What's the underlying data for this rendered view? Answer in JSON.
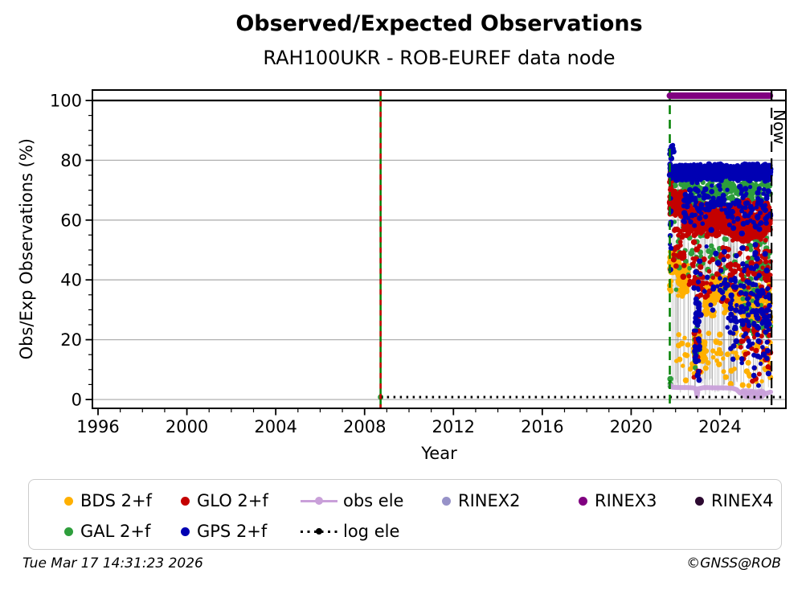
{
  "figure": {
    "title": "Observed/Expected Observations",
    "subtitle": "RAH100UKR - ROB-EUREF data node",
    "footer_left": "Tue Mar 17 14:31:23 2026",
    "footer_right": "©GNSS@ROB"
  },
  "chart_data": {
    "type": "scatter",
    "title": "Observed/Expected Observations",
    "subtitle": "RAH100UKR - ROB-EUREF data node",
    "xlabel": "Year",
    "ylabel": "Obs/Exp Observations (%)",
    "xlim": [
      1995.75,
      2026.97
    ],
    "ylim": [
      -3,
      103.5
    ],
    "xticks": [
      1996,
      2000,
      2004,
      2008,
      2012,
      2016,
      2020,
      2024
    ],
    "yticks": [
      0,
      20,
      40,
      60,
      80,
      100
    ],
    "grid": {
      "y_gridlines": [
        0,
        20,
        40,
        60,
        80
      ],
      "gridline_color": "#b0b0b0",
      "reference_line_y": 100,
      "reference_line_color": "#000000"
    },
    "annotations": {
      "now_label": "Now",
      "now_x": 2026.32,
      "first_data_vline_x": 2008.72,
      "campaign_start_vline_x": 2021.74
    },
    "lines": {
      "rinex3_bar": {
        "name": "RINEX3",
        "color": "#800080",
        "y": 101.6,
        "x": [
          2021.74,
          2026.25
        ],
        "width": 8
      },
      "log_ele": {
        "name": "log ele",
        "color": "#000000",
        "y": 0.8,
        "x": [
          2008.72,
          2026.9
        ],
        "style": "dotted"
      },
      "obs_ele": {
        "name": "obs ele",
        "color": "#C9A0D9",
        "points": [
          [
            2021.76,
            4.8
          ],
          [
            2021.85,
            4.1
          ],
          [
            2022.1,
            4.0
          ],
          [
            2022.5,
            4.0
          ],
          [
            2022.8,
            3.9
          ],
          [
            2022.92,
            3.6
          ],
          [
            2022.97,
            1.1
          ],
          [
            2023.02,
            3.6
          ],
          [
            2023.3,
            4.0
          ],
          [
            2023.8,
            3.9
          ],
          [
            2024.2,
            3.9
          ],
          [
            2024.55,
            3.8
          ],
          [
            2024.75,
            3.3
          ],
          [
            2024.9,
            2.2
          ],
          [
            2025.05,
            2.9
          ],
          [
            2025.25,
            1.9
          ],
          [
            2025.45,
            2.7
          ],
          [
            2025.65,
            1.6
          ],
          [
            2025.85,
            2.6
          ],
          [
            2026.05,
            2.0
          ],
          [
            2026.28,
            2.5
          ]
        ],
        "lumps": [
          [
            2025.15,
            2.0
          ],
          [
            2025.45,
            1.8
          ],
          [
            2025.6,
            1.5
          ],
          [
            2025.85,
            1.9
          ]
        ]
      }
    },
    "extra_points": [
      {
        "x": 2008.72,
        "y": 0.8,
        "color": "#2E9E3C"
      }
    ],
    "series": [
      {
        "name": "BDS 2+f",
        "color": "#FFB000",
        "clusters": [
          {
            "x": [
              2021.74,
              2022.15
            ],
            "y": [
              42,
              50
            ],
            "n": 200
          },
          {
            "x": [
              2022.1,
              2022.55
            ],
            "y": [
              34,
              46
            ],
            "n": 90
          },
          {
            "x": [
              2022.8,
              2023.35
            ],
            "y": [
              12,
              22
            ],
            "n": 110
          },
          {
            "x": [
              2023.3,
              2023.75
            ],
            "y": [
              26,
              40
            ],
            "n": 80
          },
          {
            "x": [
              2023.6,
              2024.25
            ],
            "y": [
              32,
              42
            ],
            "n": 140
          },
          {
            "x": [
              2024.2,
              2025.1
            ],
            "y": [
              27,
              41
            ],
            "n": 110
          },
          {
            "x": [
              2025.0,
              2026.28
            ],
            "y": [
              24,
              40
            ],
            "n": 130
          },
          {
            "x": [
              2022.0,
              2026.28
            ],
            "y": [
              3,
              26
            ],
            "n": 80
          },
          {
            "x": [
              2021.74,
              2021.8
            ],
            "y": [
              30,
              45
            ],
            "n": 6
          }
        ]
      },
      {
        "name": "GAL 2+f",
        "color": "#2E9E3C",
        "clusters": [
          {
            "x": [
              2021.74,
              2026.28
            ],
            "y": [
              63,
              77
            ],
            "n": 300
          },
          {
            "x": [
              2021.74,
              2026.28
            ],
            "y": [
              35,
              63
            ],
            "n": 90
          },
          {
            "x": [
              2022.82,
              2023.1
            ],
            "y": [
              3,
              35
            ],
            "n": 15
          },
          {
            "x": [
              2024.9,
              2026.28
            ],
            "y": [
              15,
              60
            ],
            "n": 55
          },
          {
            "x": [
              2021.74,
              2021.78
            ],
            "y": [
              0,
              12
            ],
            "n": 3
          }
        ]
      },
      {
        "name": "GLO 2+f",
        "color": "#C40000",
        "clusters": [
          {
            "x": [
              2021.74,
              2022.45
            ],
            "y": [
              61,
              70
            ],
            "n": 260
          },
          {
            "x": [
              2021.74,
              2021.84
            ],
            "y": [
              66,
              80
            ],
            "n": 12
          },
          {
            "x": [
              2022.35,
              2024.55
            ],
            "y": [
              54,
              66
            ],
            "n": 420
          },
          {
            "x": [
              2024.5,
              2026.28
            ],
            "y": [
              52,
              67
            ],
            "n": 380
          },
          {
            "x": [
              2022.6,
              2026.28
            ],
            "y": [
              30,
              54
            ],
            "n": 140
          },
          {
            "x": [
              2022.82,
              2023.1
            ],
            "y": [
              5,
              30
            ],
            "n": 25
          },
          {
            "x": [
              2024.9,
              2026.28
            ],
            "y": [
              5,
              30
            ],
            "n": 45
          },
          {
            "x": [
              2021.9,
              2022.4
            ],
            "y": [
              40,
              60
            ],
            "n": 30
          }
        ]
      },
      {
        "name": "GPS 2+f",
        "color": "#0000B3",
        "clusters": [
          {
            "x": [
              2021.74,
              2026.28
            ],
            "y": [
              73,
              79
            ],
            "n": 850
          },
          {
            "x": [
              2021.74,
              2021.92
            ],
            "y": [
              78,
              88
            ],
            "n": 18
          },
          {
            "x": [
              2021.74,
              2021.8
            ],
            "y": [
              38,
              78
            ],
            "n": 10
          },
          {
            "x": [
              2022.35,
              2026.28
            ],
            "y": [
              55,
              74
            ],
            "n": 160
          },
          {
            "x": [
              2022.82,
              2023.15
            ],
            "y": [
              3,
              50
            ],
            "n": 45
          },
          {
            "x": [
              2024.45,
              2024.75
            ],
            "y": [
              8,
              50
            ],
            "n": 30
          },
          {
            "x": [
              2024.9,
              2026.28
            ],
            "y": [
              4,
              55
            ],
            "n": 110
          },
          {
            "x": [
              2023.3,
              2024.4
            ],
            "y": [
              20,
              55
            ],
            "n": 25
          }
        ]
      }
    ],
    "gap_lines": {
      "x_range": [
        2021.78,
        2026.28
      ],
      "count": 60,
      "color": "rgba(110,110,110,0.3)"
    }
  },
  "legend": {
    "items": [
      {
        "label": "BDS 2+f",
        "color": "#FFB000",
        "marker": "dot",
        "row": 0,
        "col": 0
      },
      {
        "label": "GLO 2+f",
        "color": "#C40000",
        "marker": "dot",
        "row": 0,
        "col": 1
      },
      {
        "label": "obs ele",
        "color": "#C9A0D9",
        "marker": "line-dot",
        "row": 0,
        "col": 2
      },
      {
        "label": "RINEX2",
        "color": "#9792C8",
        "marker": "dot",
        "row": 0,
        "col": 3
      },
      {
        "label": "RINEX3",
        "color": "#800080",
        "marker": "dot",
        "row": 0,
        "col": 4
      },
      {
        "label": "RINEX4",
        "color": "#2D0A31",
        "marker": "dot",
        "row": 0,
        "col": 5
      },
      {
        "label": "GAL 2+f",
        "color": "#2E9E3C",
        "marker": "dot",
        "row": 1,
        "col": 0
      },
      {
        "label": "GPS 2+f",
        "color": "#0000B3",
        "marker": "dot",
        "row": 1,
        "col": 1
      },
      {
        "label": "log ele",
        "color": "#000000",
        "marker": "dotted-line-dot",
        "row": 1,
        "col": 2
      }
    ]
  }
}
